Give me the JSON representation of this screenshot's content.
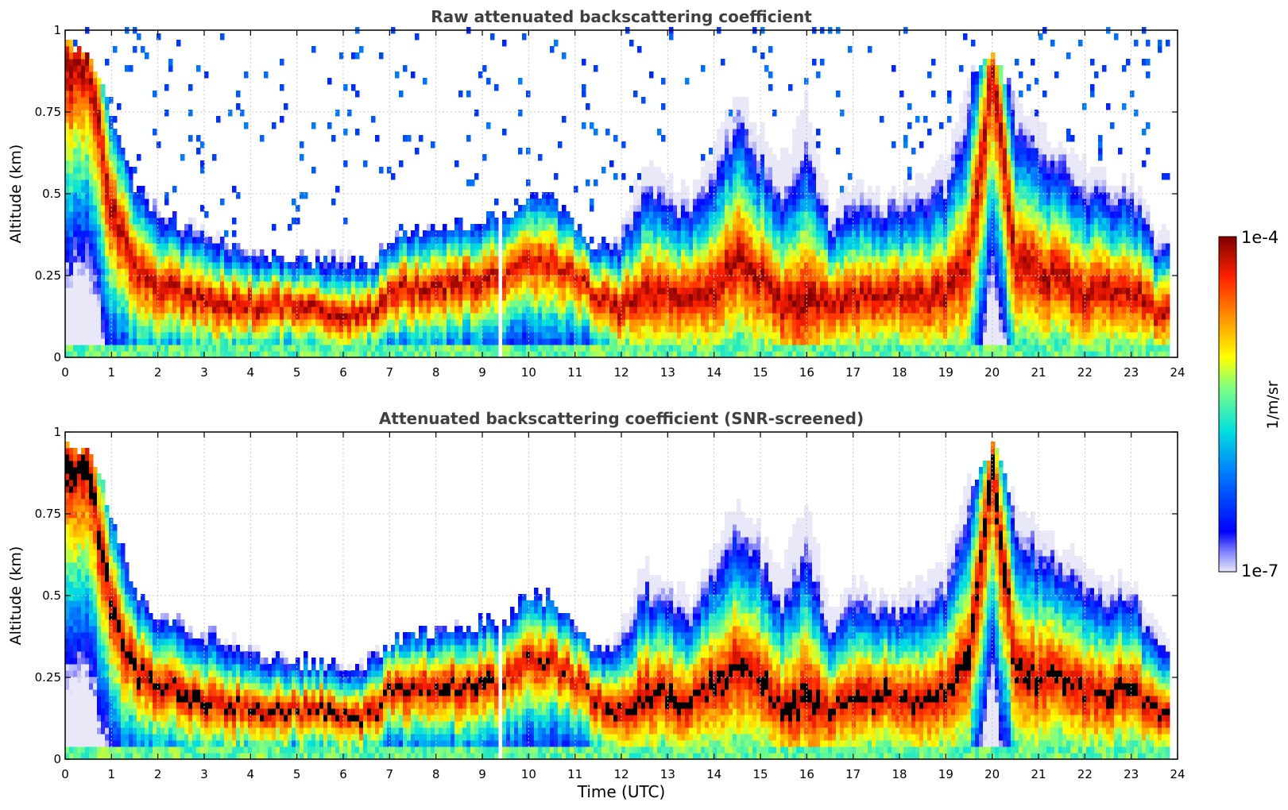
{
  "chart_data": [
    {
      "type": "heatmap",
      "title": "Raw attenuated backscattering coefficient",
      "xlabel": "",
      "ylabel": "Altitude (km)",
      "xlim": [
        0,
        24
      ],
      "ylim": [
        0,
        1
      ],
      "x_ticks": [
        "0",
        "1",
        "2",
        "3",
        "4",
        "5",
        "6",
        "7",
        "8",
        "9",
        "10",
        "11",
        "12",
        "13",
        "14",
        "15",
        "16",
        "17",
        "18",
        "19",
        "20",
        "21",
        "22",
        "23",
        "24"
      ],
      "y_ticks": [
        "0",
        "0.25",
        "0.5",
        "0.75",
        "1"
      ],
      "grid": true,
      "screened": false,
      "x": [
        0,
        0.5,
        1,
        1.5,
        2,
        2.5,
        3,
        3.5,
        4,
        4.5,
        5,
        5.5,
        6,
        6.5,
        7,
        7.5,
        8,
        8.5,
        9,
        9.5,
        10,
        10.5,
        11,
        11.5,
        12,
        12.5,
        13,
        13.5,
        14,
        14.5,
        15,
        15.5,
        16,
        16.5,
        17,
        17.5,
        18,
        18.5,
        19,
        19.5,
        20,
        20.5,
        21,
        21.5,
        22,
        22.5,
        23,
        23.5
      ],
      "layer_top_km": [
        0.95,
        0.95,
        0.75,
        0.52,
        0.45,
        0.41,
        0.39,
        0.36,
        0.34,
        0.32,
        0.31,
        0.3,
        0.3,
        0.29,
        0.37,
        0.38,
        0.39,
        0.4,
        0.42,
        0.43,
        0.5,
        0.5,
        0.41,
        0.34,
        0.4,
        0.6,
        0.55,
        0.5,
        0.65,
        0.8,
        0.7,
        0.6,
        0.8,
        0.45,
        0.55,
        0.5,
        0.5,
        0.55,
        0.6,
        0.85,
        0.95,
        0.8,
        0.7,
        0.65,
        0.6,
        0.55,
        0.55,
        0.4
      ],
      "layer_peak_km": [
        0.88,
        0.92,
        0.45,
        0.28,
        0.22,
        0.2,
        0.18,
        0.17,
        0.16,
        0.16,
        0.15,
        0.15,
        0.14,
        0.13,
        0.21,
        0.21,
        0.22,
        0.23,
        0.24,
        0.25,
        0.3,
        0.3,
        0.25,
        0.18,
        0.15,
        0.2,
        0.2,
        0.18,
        0.22,
        0.3,
        0.25,
        0.15,
        0.2,
        0.15,
        0.18,
        0.2,
        0.2,
        0.18,
        0.2,
        0.3,
        0.9,
        0.3,
        0.25,
        0.25,
        0.2,
        0.2,
        0.22,
        0.15
      ],
      "max_log10": [
        -4.0,
        -4.0,
        -4.1,
        -4.1,
        -4.1,
        -4.1,
        -4.1,
        -4.1,
        -4.1,
        -4.1,
        -4.1,
        -4.1,
        -4.1,
        -4.1,
        -4.1,
        -4.1,
        -4.1,
        -4.1,
        -4.1,
        -4.2,
        -4.2,
        -4.2,
        -4.2,
        -4.1,
        -4.1,
        -4.1,
        -4.1,
        -4.1,
        -4.1,
        -4.1,
        -4.1,
        -4.1,
        -4.0,
        -4.1,
        -4.1,
        -4.1,
        -4.1,
        -4.1,
        -4.1,
        -4.1,
        -4.0,
        -4.1,
        -4.1,
        -4.1,
        -4.1,
        -4.1,
        -4.1,
        -4.1
      ],
      "gaps_hours": [
        9.4
      ]
    },
    {
      "type": "heatmap",
      "title": "Attenuated backscattering coefficient (SNR-screened)",
      "xlabel": "Time (UTC)",
      "ylabel": "Altitude (km)",
      "xlim": [
        0,
        24
      ],
      "ylim": [
        0,
        1
      ],
      "x_ticks": [
        "0",
        "1",
        "2",
        "3",
        "4",
        "5",
        "6",
        "7",
        "8",
        "9",
        "10",
        "11",
        "12",
        "13",
        "14",
        "15",
        "16",
        "17",
        "18",
        "19",
        "20",
        "21",
        "22",
        "23",
        "24"
      ],
      "y_ticks": [
        "0",
        "0.25",
        "0.5",
        "0.75",
        "1"
      ],
      "grid": true,
      "screened": true,
      "x": [
        0,
        0.5,
        1,
        1.5,
        2,
        2.5,
        3,
        3.5,
        4,
        4.5,
        5,
        5.5,
        6,
        6.5,
        7,
        7.5,
        8,
        8.5,
        9,
        9.5,
        10,
        10.5,
        11,
        11.5,
        12,
        12.5,
        13,
        13.5,
        14,
        14.5,
        15,
        15.5,
        16,
        16.5,
        17,
        17.5,
        18,
        18.5,
        19,
        19.5,
        20,
        20.5,
        21,
        21.5,
        22,
        22.5,
        23,
        23.5
      ],
      "layer_top_km": [
        0.95,
        0.95,
        0.75,
        0.52,
        0.45,
        0.41,
        0.39,
        0.36,
        0.34,
        0.32,
        0.31,
        0.3,
        0.3,
        0.29,
        0.37,
        0.38,
        0.39,
        0.4,
        0.42,
        0.43,
        0.5,
        0.5,
        0.41,
        0.34,
        0.4,
        0.6,
        0.55,
        0.5,
        0.65,
        0.8,
        0.7,
        0.6,
        0.8,
        0.45,
        0.55,
        0.5,
        0.5,
        0.55,
        0.6,
        0.85,
        0.95,
        0.8,
        0.7,
        0.65,
        0.6,
        0.55,
        0.55,
        0.4
      ],
      "layer_peak_km": [
        0.88,
        0.92,
        0.45,
        0.28,
        0.22,
        0.2,
        0.18,
        0.17,
        0.16,
        0.16,
        0.15,
        0.15,
        0.14,
        0.13,
        0.21,
        0.21,
        0.22,
        0.23,
        0.24,
        0.25,
        0.3,
        0.3,
        0.25,
        0.18,
        0.15,
        0.2,
        0.2,
        0.18,
        0.22,
        0.3,
        0.25,
        0.15,
        0.2,
        0.15,
        0.18,
        0.2,
        0.2,
        0.18,
        0.2,
        0.3,
        0.9,
        0.3,
        0.25,
        0.25,
        0.2,
        0.2,
        0.22,
        0.15
      ],
      "max_log10": [
        -4.0,
        -4.0,
        -4.1,
        -4.1,
        -4.1,
        -4.1,
        -4.1,
        -4.1,
        -4.1,
        -4.1,
        -4.1,
        -4.1,
        -4.1,
        -4.1,
        -4.1,
        -4.1,
        -4.1,
        -4.1,
        -4.1,
        -4.2,
        -4.2,
        -4.2,
        -4.2,
        -4.1,
        -4.1,
        -4.1,
        -4.1,
        -4.1,
        -4.1,
        -4.1,
        -4.1,
        -4.1,
        -4.0,
        -4.1,
        -4.1,
        -4.1,
        -4.1,
        -4.1,
        -4.1,
        -4.1,
        -4.0,
        -4.1,
        -4.1,
        -4.1,
        -4.1,
        -4.1,
        -4.1,
        -4.1
      ],
      "saturated_color": "#000000",
      "gaps_hours": [
        9.4
      ]
    }
  ],
  "colorbar": {
    "max_label": "1e-4",
    "min_label": "1e-7",
    "label": "1/m/sr",
    "log10_range": [
      -7,
      -4
    ],
    "colormap": "jet-like",
    "low_end_color": "#e8e8f8",
    "high_end_color": "#800000"
  },
  "colors": {
    "grid": "#c8c8c8",
    "axis": "#000000",
    "title": "#404040"
  }
}
